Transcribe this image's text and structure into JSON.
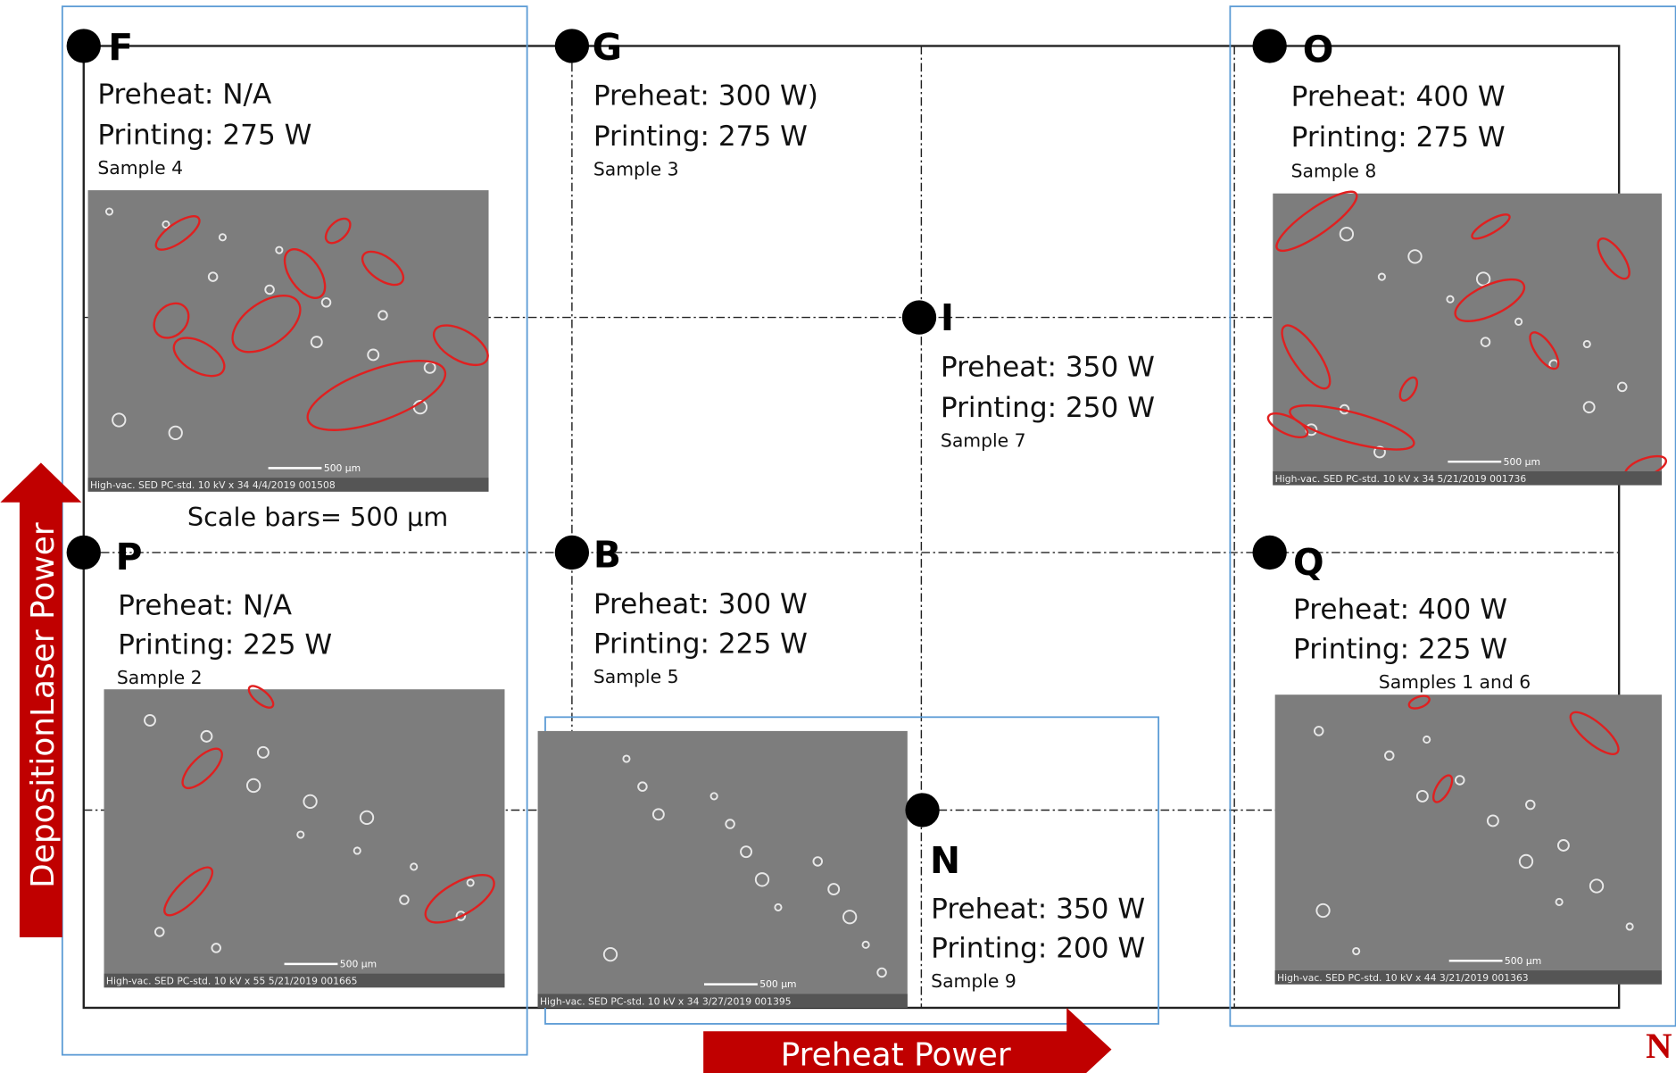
{
  "axes": {
    "vertical_label": "DepositionLaser Power",
    "horizontal_label": "Preheat Power"
  },
  "scale_note": "Scale bars= 500 µm",
  "nodes": [
    {
      "letter": "F",
      "preheat": "Preheat: N/A",
      "printing": "Printing: 275 W",
      "sample": "Sample 4",
      "image_caption": "High-vac.  SED  PC-std.  10 kV   x 34            4/4/2019  001508",
      "scale_label": "500 µm"
    },
    {
      "letter": "G",
      "preheat": "Preheat: 300 W)",
      "printing": "Printing: 275 W",
      "sample": "Sample 3"
    },
    {
      "letter": "O",
      "preheat": "Preheat: 400 W",
      "printing": "Printing: 275 W",
      "sample": "Sample  8",
      "image_caption": "High-vac.  SED  PC-std.  10 kV   x 34            5/21/2019  001736",
      "scale_label": "500 µm"
    },
    {
      "letter": "I",
      "preheat": "Preheat: 350 W",
      "printing": "Printing: 250 W",
      "sample": "Sample 7"
    },
    {
      "letter": "P",
      "preheat": "Preheat: N/A",
      "printing": "Printing: 225 W",
      "sample": "Sample 2",
      "image_caption": "High-vac.  SED  PC-std.  10 kV    x 55          5/21/2019  001665",
      "scale_label": "500 µm"
    },
    {
      "letter": "B",
      "preheat": "Preheat: 300 W",
      "printing": "Printing: 225 W",
      "sample": "Sample 5",
      "image_caption": "High-vac.  SED  PC-std.  10 kV   x 34        3/27/2019  001395",
      "scale_label": "500 µm"
    },
    {
      "letter": "Q",
      "preheat": "Preheat: 400 W",
      "printing": "Printing: 225 W",
      "sample": "Samples 1 and 6",
      "image_caption": "High-vac.  SED  PC-std.  10 kV    x 44         3/21/2019  001363",
      "scale_label": "500 µm"
    },
    {
      "letter": "N",
      "preheat": "Preheat: 350 W",
      "printing": "Printing: 200 W",
      "sample": "Sample 9"
    }
  ]
}
